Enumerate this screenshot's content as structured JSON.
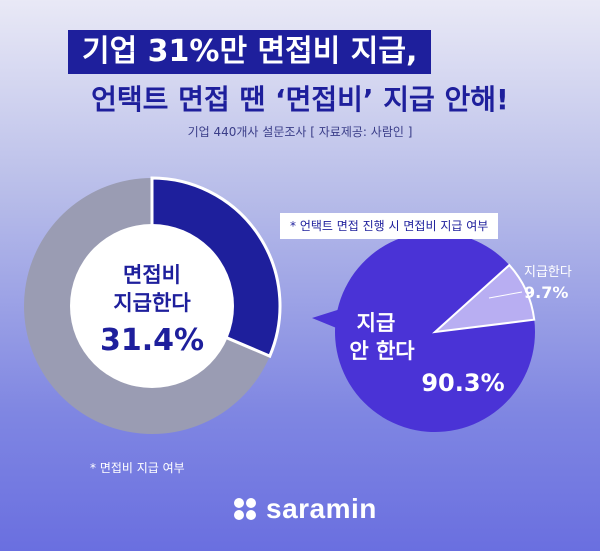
{
  "header": {
    "title_line1": "기업 31%만 면접비 지급,",
    "title_line2": "언택트 면접 땐 ‘면접비’ 지급 안해!",
    "source_note": "기업 440개사 설문조사 [ 자료제공: 사람인 ]"
  },
  "colors": {
    "brand_navy": "#1e1f9c",
    "grey_slice": "#9a9cb3",
    "purple_fill": "#4a33d6",
    "light_slice": "#b8aef2",
    "background_top": "#e9e9f6",
    "background_bottom": "#6a6fe0"
  },
  "chart_data": [
    {
      "type": "pie",
      "caption": "* 면접비 지급 여부",
      "slices": [
        {
          "label": "면접비 지급한다",
          "value": 31.4,
          "value_label": "31.4%"
        },
        {
          "label": "",
          "value": 68.6
        }
      ],
      "center_label_line1": "면접비",
      "center_label_line2": "지급한다",
      "center_value": "31.4%"
    },
    {
      "type": "pie",
      "caption": "* 언택트 면접 진행 시 면접비 지급 여부",
      "slices": [
        {
          "label": "지급한다",
          "value": 9.7,
          "value_label": "9.7%"
        },
        {
          "label": "지급 안 한다",
          "value": 90.3,
          "value_label": "90.3%"
        }
      ],
      "main_label_line1": "지급",
      "main_label_line2": "안 한다"
    }
  ],
  "footer": {
    "logo_icon": "saramin-dots-icon",
    "logo_text": "saramin"
  }
}
